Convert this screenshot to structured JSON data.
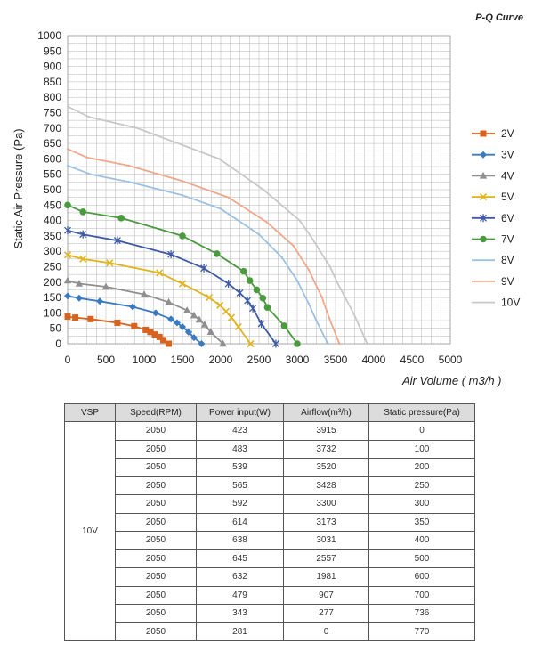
{
  "chart_data": {
    "type": "line",
    "title": "P-Q Curve",
    "xlabel": "Air Volume ( m3/h )",
    "ylabel": "Static Air Pressure  (Pa)",
    "xlim": [
      0,
      5000
    ],
    "ylim": [
      0,
      1000
    ],
    "xticks": [
      0,
      500,
      1000,
      1500,
      2000,
      2500,
      3000,
      3500,
      4000,
      4500,
      5000
    ],
    "yticks": [
      0,
      50,
      100,
      150,
      200,
      250,
      300,
      350,
      400,
      450,
      500,
      550,
      600,
      650,
      700,
      750,
      800,
      850,
      900,
      950,
      1000
    ],
    "grid": true,
    "legend_position": "right",
    "series": [
      {
        "name": "2V",
        "color": "#d9631e",
        "marker": "square",
        "x": [
          0,
          100,
          300,
          650,
          870,
          1020,
          1080,
          1140,
          1200,
          1250,
          1320
        ],
        "y": [
          88,
          85,
          80,
          68,
          57,
          45,
          38,
          30,
          22,
          12,
          0
        ]
      },
      {
        "name": "3V",
        "color": "#3a7bbf",
        "marker": "diamond",
        "x": [
          0,
          150,
          420,
          850,
          1150,
          1350,
          1430,
          1500,
          1580,
          1650,
          1750
        ],
        "y": [
          155,
          148,
          138,
          120,
          100,
          80,
          68,
          55,
          38,
          20,
          0
        ]
      },
      {
        "name": "4V",
        "color": "#8f8f8f",
        "marker": "triangle",
        "x": [
          0,
          150,
          500,
          1000,
          1320,
          1560,
          1650,
          1720,
          1790,
          1870,
          2030
        ],
        "y": [
          205,
          195,
          185,
          160,
          135,
          108,
          92,
          78,
          62,
          38,
          0
        ]
      },
      {
        "name": "5V",
        "color": "#e2b41c",
        "marker": "x",
        "x": [
          0,
          200,
          550,
          1200,
          1500,
          1850,
          1990,
          2070,
          2140,
          2230,
          2390
        ],
        "y": [
          288,
          275,
          262,
          230,
          195,
          150,
          125,
          105,
          85,
          55,
          0
        ]
      },
      {
        "name": "6V",
        "color": "#3e5aa5",
        "marker": "star",
        "x": [
          0,
          200,
          650,
          1350,
          1780,
          2100,
          2250,
          2350,
          2420,
          2530,
          2720
        ],
        "y": [
          368,
          355,
          335,
          290,
          245,
          195,
          165,
          140,
          115,
          65,
          0
        ]
      },
      {
        "name": "7V",
        "color": "#4a9a3e",
        "marker": "circle",
        "x": [
          0,
          200,
          700,
          1500,
          1950,
          2300,
          2380,
          2470,
          2550,
          2610,
          2830,
          3000
        ],
        "y": [
          450,
          428,
          408,
          350,
          292,
          235,
          205,
          175,
          148,
          118,
          58,
          0
        ]
      },
      {
        "name": "8V",
        "color": "#9dc1e2",
        "marker": "none",
        "x": [
          0,
          300,
          800,
          1500,
          2000,
          2500,
          2800,
          3000,
          3150,
          3250,
          3400
        ],
        "y": [
          578,
          550,
          525,
          482,
          438,
          355,
          280,
          205,
          130,
          75,
          0
        ]
      },
      {
        "name": "9V",
        "color": "#f0a78a",
        "marker": "none",
        "x": [
          0,
          250,
          800,
          1500,
          2100,
          2600,
          2950,
          3150,
          3320,
          3420,
          3550
        ],
        "y": [
          632,
          605,
          578,
          528,
          475,
          395,
          318,
          240,
          152,
          82,
          0
        ]
      },
      {
        "name": "10V",
        "color": "#c8c8c8",
        "marker": "none",
        "x": [
          0,
          277,
          907,
          1981,
          2557,
          3031,
          3173,
          3300,
          3428,
          3520,
          3732,
          3915
        ],
        "y": [
          770,
          736,
          700,
          600,
          500,
          400,
          350,
          300,
          250,
          200,
          100,
          0
        ]
      }
    ]
  },
  "table": {
    "headers": [
      "VSP",
      "Speed(RPM)",
      "Power input(W)",
      "Airflow(m³/h)",
      "Static pressure(Pa)"
    ],
    "vsp_label": "10V",
    "rows": [
      {
        "speed": "2050",
        "power": "423",
        "airflow": "3915",
        "pressure": "0"
      },
      {
        "speed": "2050",
        "power": "483",
        "airflow": "3732",
        "pressure": "100"
      },
      {
        "speed": "2050",
        "power": "539",
        "airflow": "3520",
        "pressure": "200"
      },
      {
        "speed": "2050",
        "power": "565",
        "airflow": "3428",
        "pressure": "250"
      },
      {
        "speed": "2050",
        "power": "592",
        "airflow": "3300",
        "pressure": "300"
      },
      {
        "speed": "2050",
        "power": "614",
        "airflow": "3173",
        "pressure": "350"
      },
      {
        "speed": "2050",
        "power": "638",
        "airflow": "3031",
        "pressure": "400"
      },
      {
        "speed": "2050",
        "power": "645",
        "airflow": "2557",
        "pressure": "500"
      },
      {
        "speed": "2050",
        "power": "632",
        "airflow": "1981",
        "pressure": "600"
      },
      {
        "speed": "2050",
        "power": "479",
        "airflow": "907",
        "pressure": "700"
      },
      {
        "speed": "2050",
        "power": "343",
        "airflow": "277",
        "pressure": "736"
      },
      {
        "speed": "2050",
        "power": "281",
        "airflow": "0",
        "pressure": "770"
      }
    ]
  }
}
